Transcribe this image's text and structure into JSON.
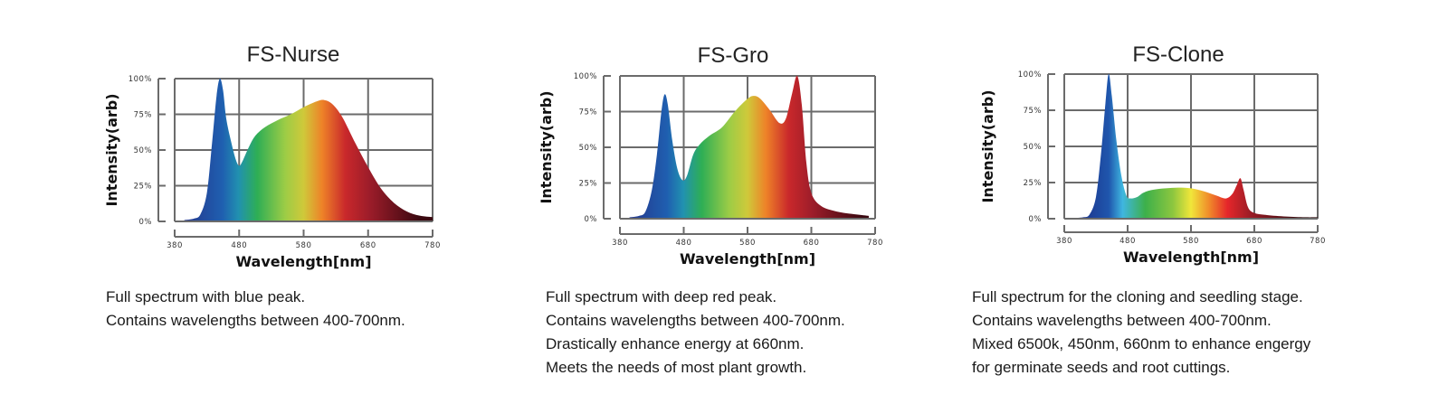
{
  "panels": [
    {
      "title": "FS-Nurse",
      "description": [
        "Full spectrum with blue peak.",
        "Contains wavelengths between 400-700nm."
      ]
    },
    {
      "title": "FS-Gro",
      "description": [
        "Full spectrum with deep red peak.",
        "Contains wavelengths between 400-700nm.",
        "Drastically enhance energy at 660nm.",
        "Meets the needs of most plant growth."
      ]
    },
    {
      "title": "FS-Clone",
      "description": [
        "Full spectrum for the cloning and seedling stage.",
        "Contains wavelengths between 400-700nm.",
        "Mixed 6500k, 450nm, 660nm to enhance engergy",
        "for germinate seeds and root cuttings."
      ]
    }
  ],
  "axes": {
    "xlabel": "Wavelength[nm]",
    "ylabel": "Intensity(arb)",
    "xticks": [
      "380",
      "480",
      "580",
      "680",
      "780"
    ],
    "yticks": [
      "100%",
      "75%",
      "50%",
      "25%",
      "0%"
    ]
  },
  "colors": {
    "grid": "#6b6b6b",
    "spectrum_stops": [
      "#1f3f95",
      "#1f64b4",
      "#2aa35a",
      "#a8cf45",
      "#e9e23a",
      "#ee7d2b",
      "#d9302a",
      "#a3202a",
      "#3d0a10"
    ]
  },
  "chart_data": [
    {
      "type": "area",
      "title": "FS-Nurse",
      "xlabel": "Wavelength[nm]",
      "ylabel": "Intensity(arb)",
      "xlim": [
        380,
        780
      ],
      "ylim": [
        0,
        100
      ],
      "xticks": [
        380,
        480,
        580,
        680,
        780
      ],
      "yticks": [
        "0%",
        "25%",
        "50%",
        "75%",
        "100%"
      ],
      "grid": true,
      "x": [
        395,
        410,
        420,
        430,
        438,
        445,
        450,
        455,
        460,
        468,
        475,
        480,
        485,
        495,
        505,
        520,
        540,
        560,
        580,
        600,
        612,
        625,
        640,
        660,
        680,
        700,
        720,
        740,
        760,
        780
      ],
      "values": [
        1,
        2,
        5,
        20,
        55,
        88,
        100,
        92,
        72,
        55,
        43,
        39,
        42,
        52,
        60,
        66,
        71,
        75,
        80,
        84,
        85,
        82,
        73,
        55,
        38,
        23,
        13,
        7,
        4,
        3
      ]
    },
    {
      "type": "area",
      "title": "FS-Gro",
      "xlabel": "Wavelength[nm]",
      "ylabel": "Intensity(arb)",
      "xlim": [
        380,
        780
      ],
      "ylim": [
        0,
        100
      ],
      "xticks": [
        380,
        480,
        580,
        680,
        780
      ],
      "yticks": [
        "0%",
        "25%",
        "50%",
        "75%",
        "100%"
      ],
      "grid": true,
      "x": [
        395,
        410,
        420,
        430,
        438,
        445,
        450,
        455,
        462,
        470,
        478,
        485,
        495,
        505,
        520,
        540,
        560,
        580,
        590,
        600,
        615,
        630,
        640,
        650,
        658,
        665,
        672,
        680,
        695,
        720,
        750,
        770
      ],
      "values": [
        1,
        2,
        5,
        20,
        45,
        75,
        87,
        80,
        55,
        35,
        27,
        30,
        45,
        52,
        58,
        64,
        75,
        84,
        86,
        84,
        76,
        67,
        70,
        88,
        100,
        80,
        40,
        18,
        9,
        5,
        3,
        2
      ]
    },
    {
      "type": "area",
      "title": "FS-Clone",
      "xlabel": "Wavelength[nm]",
      "ylabel": "Intensity(arb)",
      "xlim": [
        380,
        780
      ],
      "ylim": [
        0,
        100
      ],
      "xticks": [
        380,
        480,
        580,
        680,
        780
      ],
      "yticks": [
        "0%",
        "25%",
        "50%",
        "75%",
        "100%"
      ],
      "grid": true,
      "x": [
        395,
        410,
        420,
        430,
        438,
        445,
        450,
        455,
        462,
        470,
        478,
        485,
        495,
        505,
        520,
        540,
        560,
        580,
        600,
        620,
        635,
        645,
        652,
        658,
        663,
        670,
        680,
        700,
        730,
        760,
        780
      ],
      "values": [
        0.5,
        1,
        3,
        15,
        45,
        80,
        100,
        85,
        55,
        30,
        16,
        14,
        15,
        18,
        20,
        21,
        21.5,
        21,
        19,
        16,
        14,
        17,
        23,
        28,
        20,
        8,
        4,
        2.5,
        1.5,
        1,
        1
      ]
    }
  ]
}
